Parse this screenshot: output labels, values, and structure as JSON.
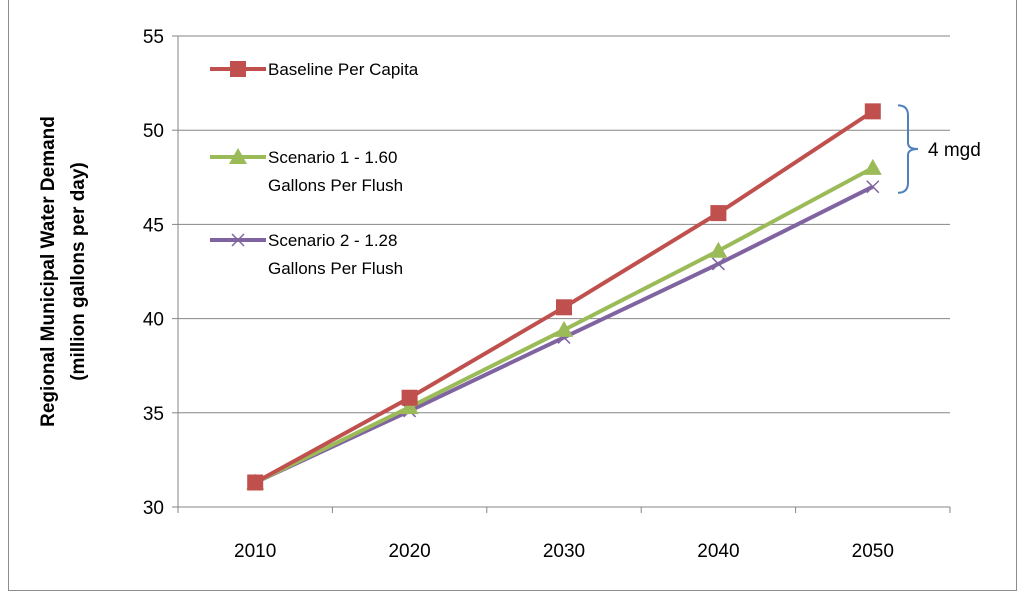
{
  "chart_data": {
    "type": "line",
    "title": "",
    "xlabel": "",
    "ylabel": "Regional Municipal Water Demand",
    "ylabel_units": "(million gallons per day)",
    "categories": [
      "2010",
      "2020",
      "2030",
      "2040",
      "2050"
    ],
    "ylim": [
      30,
      55
    ],
    "yticks": [
      30,
      35,
      40,
      45,
      50,
      55
    ],
    "grid": "horizontal",
    "legend_position": "top-left inside",
    "series": [
      {
        "name_lines": [
          "Baseline Per Capita"
        ],
        "color": "#c0504d",
        "marker": "square",
        "values": [
          31.3,
          35.8,
          40.6,
          45.6,
          51.0
        ]
      },
      {
        "name_lines": [
          "Scenario 1 - 1.60",
          "Gallons Per Flush"
        ],
        "color": "#9bbb59",
        "marker": "triangle",
        "values": [
          31.3,
          35.3,
          39.4,
          43.6,
          48.0
        ]
      },
      {
        "name_lines": [
          "Scenario 2 - 1.28",
          "Gallons Per Flush"
        ],
        "color": "#8064a2",
        "marker": "x",
        "values": [
          31.3,
          35.1,
          39.0,
          42.9,
          47.0
        ]
      }
    ],
    "annotation": {
      "text": "4 mgd",
      "color": "#4f81bd",
      "span": [
        47.0,
        51.0
      ]
    }
  }
}
